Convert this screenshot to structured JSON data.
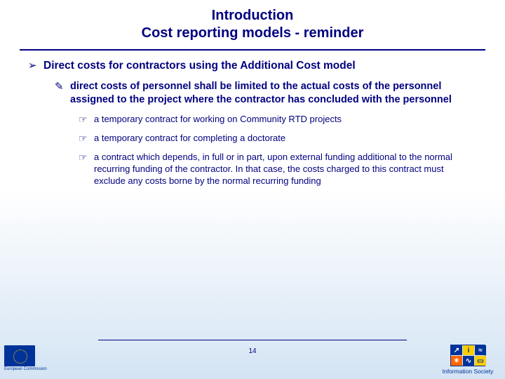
{
  "title": {
    "line1": "Introduction",
    "line2": "Cost reporting models - reminder"
  },
  "bullets": {
    "lvl1_marker": "➢",
    "lvl2_marker": "✎",
    "lvl3_marker": "☞",
    "l1": "Direct costs for contractors using the Additional Cost model",
    "l2": "direct costs of personnel shall be limited to the actual costs of the personnel assigned to the project where the contractor has concluded with the personnel",
    "l3a": "a temporary contract for working on Community RTD projects",
    "l3b": "a temporary contract for completing a doctorate",
    "l3c": "a contract which depends, in full or in part, upon external funding additional to the normal recurring funding of the contractor.  In that case, the costs charged to this contract must exclude any costs borne by the normal recurring funding"
  },
  "page_number": "14",
  "logos": {
    "left_label": "European Commission",
    "right_label": "Information Society"
  },
  "colors": {
    "text": "#000080",
    "eu_blue": "#003399",
    "eu_yellow": "#ffcc00",
    "orange": "#ff6600"
  }
}
